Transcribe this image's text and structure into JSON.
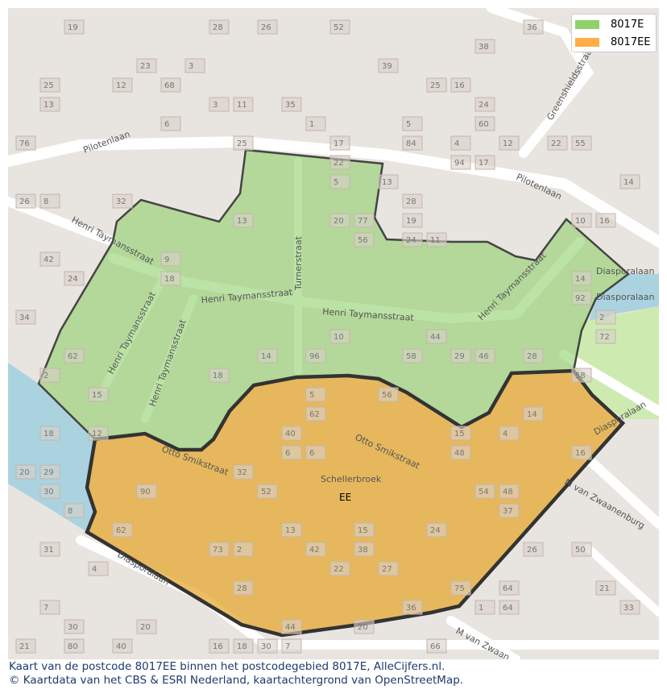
{
  "legend": [
    {
      "label": "8017E",
      "color": "#8fd16a"
    },
    {
      "label": "8017EE",
      "color": "#ffad47"
    }
  ],
  "area_label": "EE",
  "streets": {
    "pilotenlaan_1": "Pilotenlaan",
    "pilotenlaan_2": "Pilotenlaan",
    "henri_1": "Henri Taymansstraat",
    "henri_2": "Henri Taymansstraat",
    "henri_3": "Henri Taymansstraat",
    "henri_4": "Henri Taymansstraat",
    "henri_5": "Henri Taymansstraat",
    "henri_6": "Henri Taymansstraat",
    "turnerstraat": "Turnerstraat",
    "otto_1": "Otto Smikstraat",
    "otto_2": "Otto Smikstraat",
    "greenshields": "Greenshieldsstraat",
    "diasporalaan_1": "Diasporalaan",
    "diasporalaan_2": "Diasporalaan",
    "diasporalaan_3": "Diasporalaan",
    "diasporalaan_4": "Diasporalaan",
    "zwaanenburg_1": "M van Zwaanenburg",
    "zwaanenburg_2": "M van Zwaan",
    "schellerbroek": "Schellerbroek"
  },
  "house_numbers": [
    "14",
    "16",
    "18",
    "20",
    "22",
    "24",
    "26",
    "28",
    "6",
    "13",
    "15",
    "17",
    "19",
    "21",
    "23",
    "25",
    "27",
    "29",
    "2",
    "4",
    "2",
    "32",
    "36",
    "38",
    "30",
    "28",
    "26",
    "24",
    "22",
    "42",
    "48",
    "50",
    "54",
    "58",
    "62",
    "1",
    "3",
    "5",
    "7",
    "12",
    "14",
    "16",
    "18",
    "11",
    "13",
    "15",
    "17",
    "9",
    "11",
    "13",
    "15",
    "21",
    "25",
    "62",
    "60",
    "58",
    "56",
    "52",
    "48",
    "20",
    "18",
    "16",
    "14",
    "12",
    "10",
    "8",
    "6",
    "4",
    "24",
    "26",
    "28",
    "30",
    "32",
    "34",
    "36",
    "38",
    "42",
    "44",
    "22",
    "20",
    "18",
    "16",
    "14",
    "10",
    "12",
    "73",
    "77",
    "75",
    "33",
    "55",
    "37",
    "31",
    "29",
    "25",
    "13",
    "7",
    "64",
    "96",
    "94",
    "92",
    "90",
    "80",
    "84",
    "76",
    "72",
    "66",
    "64",
    "68",
    "62",
    "56",
    "52",
    "46",
    "40",
    "39",
    "35",
    "19",
    "5",
    "1",
    "3",
    "5",
    "4",
    "2",
    "6",
    "8",
    "20",
    "24",
    "28",
    "30",
    "40",
    "44"
  ],
  "caption": {
    "line1": "Kaart van de postcode 8017EE binnen het postcodegebied 8017E, AlleCijfers.nl.",
    "line2": "© Kaartdata van het CBS & ESRI Nederland, kaartachtergrond van OpenStreetMap."
  }
}
